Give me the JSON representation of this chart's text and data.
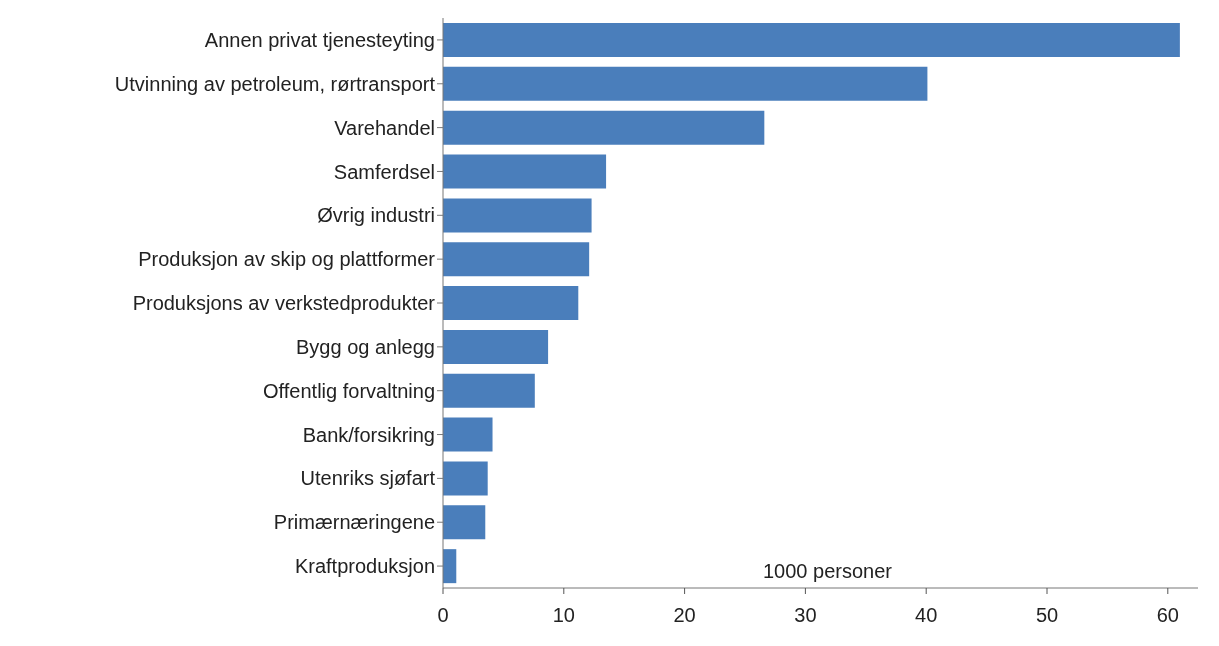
{
  "chart_data": {
    "type": "bar",
    "orientation": "horizontal",
    "categories": [
      "Annen privat tjenesteyting",
      "Utvinning av petroleum, rørtransport",
      "Varehandel",
      "Samferdsel",
      "Øvrig industri",
      "Produksjon av skip og plattformer",
      "Produksjons av verkstedprodukter",
      "Bygg og anlegg",
      "Offentlig forvaltning",
      "Bank/forsikring",
      "Utenriks sjøfart",
      "Primærnæringene",
      "Kraftproduksjon"
    ],
    "values": [
      61,
      40.1,
      26.6,
      13.5,
      12.3,
      12.1,
      11.2,
      8.7,
      7.6,
      4.1,
      3.7,
      3.5,
      1.1
    ],
    "color": "#4a7ebb",
    "xlim": [
      0,
      62.5
    ],
    "xticks": [
      0,
      10,
      20,
      30,
      40,
      50,
      60
    ],
    "annotations": [
      "1000 personer"
    ],
    "grid": false,
    "legend": false
  }
}
